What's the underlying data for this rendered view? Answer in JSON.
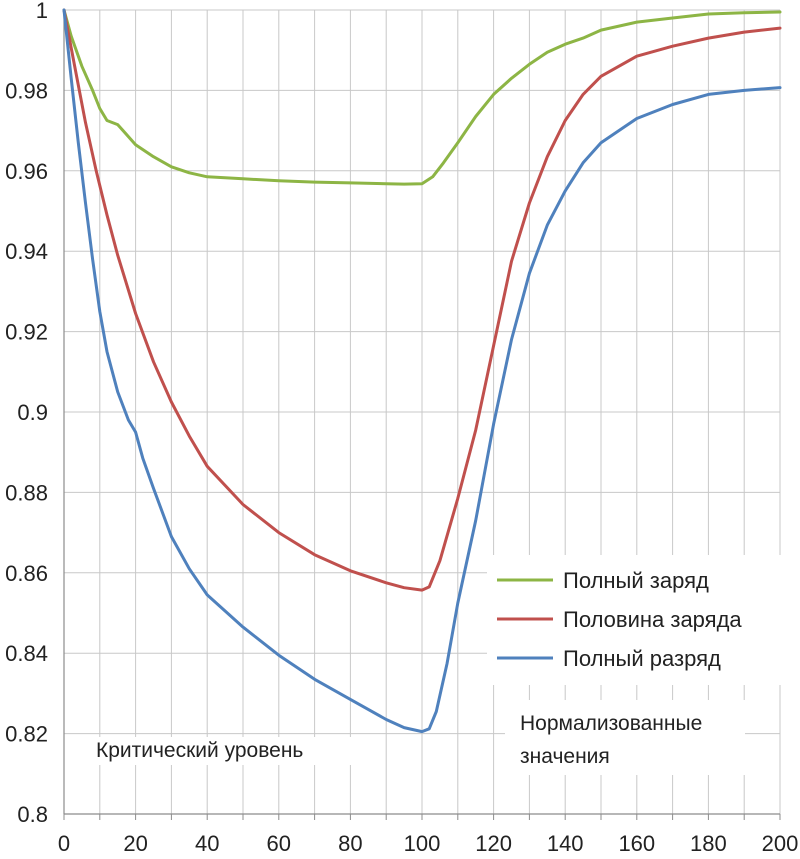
{
  "chart_data": {
    "type": "line",
    "title": "",
    "xlabel": "",
    "ylabel": "",
    "xlim": [
      0,
      200
    ],
    "ylim": [
      0.8,
      1.0
    ],
    "x_ticks": [
      "0",
      "20",
      "40",
      "60",
      "80",
      "100",
      "120",
      "140",
      "160",
      "180",
      "200"
    ],
    "y_ticks": [
      "0.8",
      "0.82",
      "0.84",
      "0.86",
      "0.88",
      "0.9",
      "0.92",
      "0.94",
      "0.96",
      "0.98",
      "1"
    ],
    "grid": true,
    "legend_position": "right",
    "annotations": {
      "critical_level": "Критический уровень",
      "normalized_line1": "Нормализованные",
      "normalized_line2": "значения"
    },
    "series": [
      {
        "name": "Полный заряд",
        "color": "#8db545",
        "x": [
          0,
          2,
          5,
          8,
          10,
          12,
          15,
          18,
          20,
          25,
          30,
          35,
          40,
          50,
          60,
          70,
          80,
          90,
          95,
          100,
          103,
          106,
          110,
          115,
          120,
          125,
          130,
          135,
          140,
          145,
          150,
          160,
          170,
          180,
          190,
          200
        ],
        "y": [
          1.0,
          0.9935,
          0.986,
          0.98,
          0.9755,
          0.9725,
          0.9715,
          0.9685,
          0.9665,
          0.9635,
          0.961,
          0.9595,
          0.9585,
          0.958,
          0.9575,
          0.9572,
          0.957,
          0.9568,
          0.9567,
          0.9568,
          0.9585,
          0.962,
          0.967,
          0.9735,
          0.979,
          0.983,
          0.9865,
          0.9895,
          0.9915,
          0.993,
          0.995,
          0.997,
          0.998,
          0.999,
          0.9993,
          0.9995
        ]
      },
      {
        "name": "Половина заряда",
        "color": "#c0504d",
        "x": [
          0,
          3,
          6,
          9,
          12,
          15,
          20,
          25,
          30,
          35,
          40,
          50,
          60,
          70,
          80,
          90,
          95,
          100,
          102,
          105,
          110,
          115,
          120,
          125,
          130,
          135,
          140,
          145,
          150,
          160,
          170,
          180,
          190,
          200
        ],
        "y": [
          1.0,
          0.986,
          0.972,
          0.96,
          0.949,
          0.939,
          0.9245,
          0.9125,
          0.9025,
          0.894,
          0.8865,
          0.877,
          0.87,
          0.8645,
          0.8605,
          0.8575,
          0.8563,
          0.8557,
          0.8565,
          0.863,
          0.8785,
          0.8955,
          0.9165,
          0.9375,
          0.952,
          0.9635,
          0.9725,
          0.979,
          0.9835,
          0.9885,
          0.991,
          0.993,
          0.9945,
          0.9955
        ]
      },
      {
        "name": "Полный разряд",
        "color": "#4f81bd",
        "x": [
          0,
          2,
          4,
          6,
          8,
          10,
          12,
          15,
          18,
          20,
          22,
          25,
          30,
          35,
          40,
          50,
          60,
          70,
          80,
          90,
          95,
          100,
          102,
          104,
          107,
          110,
          115,
          120,
          125,
          130,
          135,
          140,
          145,
          150,
          160,
          170,
          180,
          190,
          200
        ],
        "y": [
          1.0,
          0.983,
          0.967,
          0.952,
          0.938,
          0.925,
          0.915,
          0.905,
          0.898,
          0.895,
          0.8885,
          0.881,
          0.869,
          0.861,
          0.8545,
          0.8465,
          0.8395,
          0.8335,
          0.8285,
          0.8235,
          0.8215,
          0.8205,
          0.8212,
          0.8255,
          0.8375,
          0.8525,
          0.873,
          0.897,
          0.918,
          0.9345,
          0.9465,
          0.955,
          0.962,
          0.967,
          0.973,
          0.9765,
          0.979,
          0.98,
          0.9807
        ]
      }
    ]
  }
}
